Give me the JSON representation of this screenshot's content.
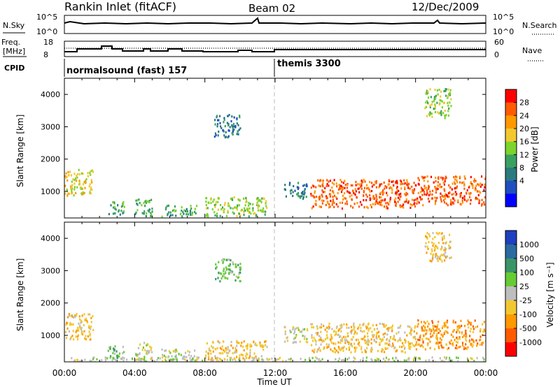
{
  "header": {
    "station": "Rankin Inlet (fitACF)",
    "beam": "Beam 02",
    "date": "12/Dec/2009"
  },
  "top_panels": {
    "nsky_label": "N.Sky",
    "nsky_ticks": [
      "10^5",
      "10^0"
    ],
    "nsearch_label": "N.Search",
    "nsearch_ticks": [
      "10^5",
      "10^0"
    ],
    "freq_label_1": "Freq.",
    "freq_label_2": "[MHz]",
    "freq_ticks": [
      "18",
      "8"
    ],
    "nave_label": "Nave",
    "nave_ticks": [
      "60",
      "0"
    ],
    "cpid_label": "CPID",
    "cpid_segments": [
      {
        "label": "normalsound (fast) 157",
        "start_hour": 0
      },
      {
        "label": "themis 3300",
        "start_hour": 12
      }
    ]
  },
  "time_axis": {
    "label": "Time UT",
    "ticks": [
      "00:00",
      "04:00",
      "08:00",
      "12:00",
      "16:00",
      "20:00",
      "00:00"
    ]
  },
  "power_colorbar": {
    "title": "Power [dB]",
    "ticks": [
      "28",
      "24",
      "20",
      "16",
      "12",
      "8",
      "4"
    ],
    "colors": [
      "#ff0000",
      "#ff5a00",
      "#ff9900",
      "#f2c830",
      "#7cd42c",
      "#3aa060",
      "#2a7a80",
      "#1f4fbf",
      "#0000ff"
    ]
  },
  "velocity_colorbar": {
    "title": "Velocity [m s⁻¹]",
    "ticks": [
      "1000",
      "500",
      "100",
      "25",
      "-25",
      "-100",
      "-500",
      "-1000"
    ],
    "colors": [
      "#1e3fbe",
      "#2a6aa0",
      "#3a9468",
      "#66cc33",
      "#bebebe",
      "#f2c830",
      "#ff9900",
      "#ff5a00",
      "#ff0000"
    ]
  },
  "chart_data": [
    {
      "type": "heatmap",
      "title": "Power",
      "xlabel": "Time UT",
      "ylabel": "Slant Range [km]",
      "xlim": [
        0,
        24
      ],
      "ylim": [
        180,
        4500
      ],
      "yticks": [
        "1000",
        "2000",
        "3000",
        "4000"
      ],
      "colorbar_label": "Power [dB]",
      "clim": [
        0,
        30
      ],
      "regions": [
        {
          "t0": 0.0,
          "t1": 1.6,
          "r0": 900,
          "r1": 1700,
          "value": 18
        },
        {
          "t0": 2.4,
          "t1": 3.4,
          "r0": 300,
          "r1": 700,
          "value": 12
        },
        {
          "t0": 4.0,
          "t1": 5.0,
          "r0": 250,
          "r1": 800,
          "value": 10
        },
        {
          "t0": 5.5,
          "t1": 7.5,
          "r0": 250,
          "r1": 600,
          "value": 12
        },
        {
          "t0": 8.0,
          "t1": 11.5,
          "r0": 250,
          "r1": 850,
          "value": 16
        },
        {
          "t0": 8.5,
          "t1": 10.0,
          "r0": 2700,
          "r1": 3400,
          "value": 8
        },
        {
          "t0": 12.5,
          "t1": 13.8,
          "r0": 800,
          "r1": 1300,
          "value": 8
        },
        {
          "t0": 14.0,
          "t1": 20.0,
          "r0": 500,
          "r1": 1400,
          "value": 26
        },
        {
          "t0": 20.0,
          "t1": 24.0,
          "r0": 600,
          "r1": 1500,
          "value": 26
        },
        {
          "t0": 20.5,
          "t1": 22.0,
          "r0": 3300,
          "r1": 4200,
          "value": 16
        }
      ]
    },
    {
      "type": "heatmap",
      "title": "Velocity",
      "xlabel": "Time UT",
      "ylabel": "Slant Range [km]",
      "xlim": [
        0,
        24
      ],
      "ylim": [
        180,
        4500
      ],
      "yticks": [
        "1000",
        "2000",
        "3000",
        "4000"
      ],
      "colorbar_label": "Velocity [m s⁻¹]",
      "clim": [
        -1000,
        1000
      ],
      "regions": [
        {
          "t0": 0.0,
          "t1": 1.6,
          "r0": 900,
          "r1": 1700,
          "value": -200
        },
        {
          "t0": 2.4,
          "t1": 3.4,
          "r0": 300,
          "r1": 700,
          "value": 150
        },
        {
          "t0": 4.0,
          "t1": 5.0,
          "r0": 250,
          "r1": 800,
          "value": 80
        },
        {
          "t0": 5.5,
          "t1": 7.5,
          "r0": 250,
          "r1": 600,
          "value": -60
        },
        {
          "t0": 8.0,
          "t1": 11.5,
          "r0": 250,
          "r1": 850,
          "value": -150
        },
        {
          "t0": 8.5,
          "t1": 10.0,
          "r0": 2700,
          "r1": 3400,
          "value": 300
        },
        {
          "t0": 12.5,
          "t1": 13.8,
          "r0": 800,
          "r1": 1300,
          "value": -100
        },
        {
          "t0": 14.0,
          "t1": 20.0,
          "r0": 500,
          "r1": 1400,
          "value": -300
        },
        {
          "t0": 20.0,
          "t1": 24.0,
          "r0": 600,
          "r1": 1500,
          "value": -500
        },
        {
          "t0": 20.5,
          "t1": 22.0,
          "r0": 3300,
          "r1": 4200,
          "value": -150
        },
        {
          "t0": 0.0,
          "t1": 24.0,
          "r0": 180,
          "r1": 350,
          "value": 0
        }
      ]
    }
  ]
}
